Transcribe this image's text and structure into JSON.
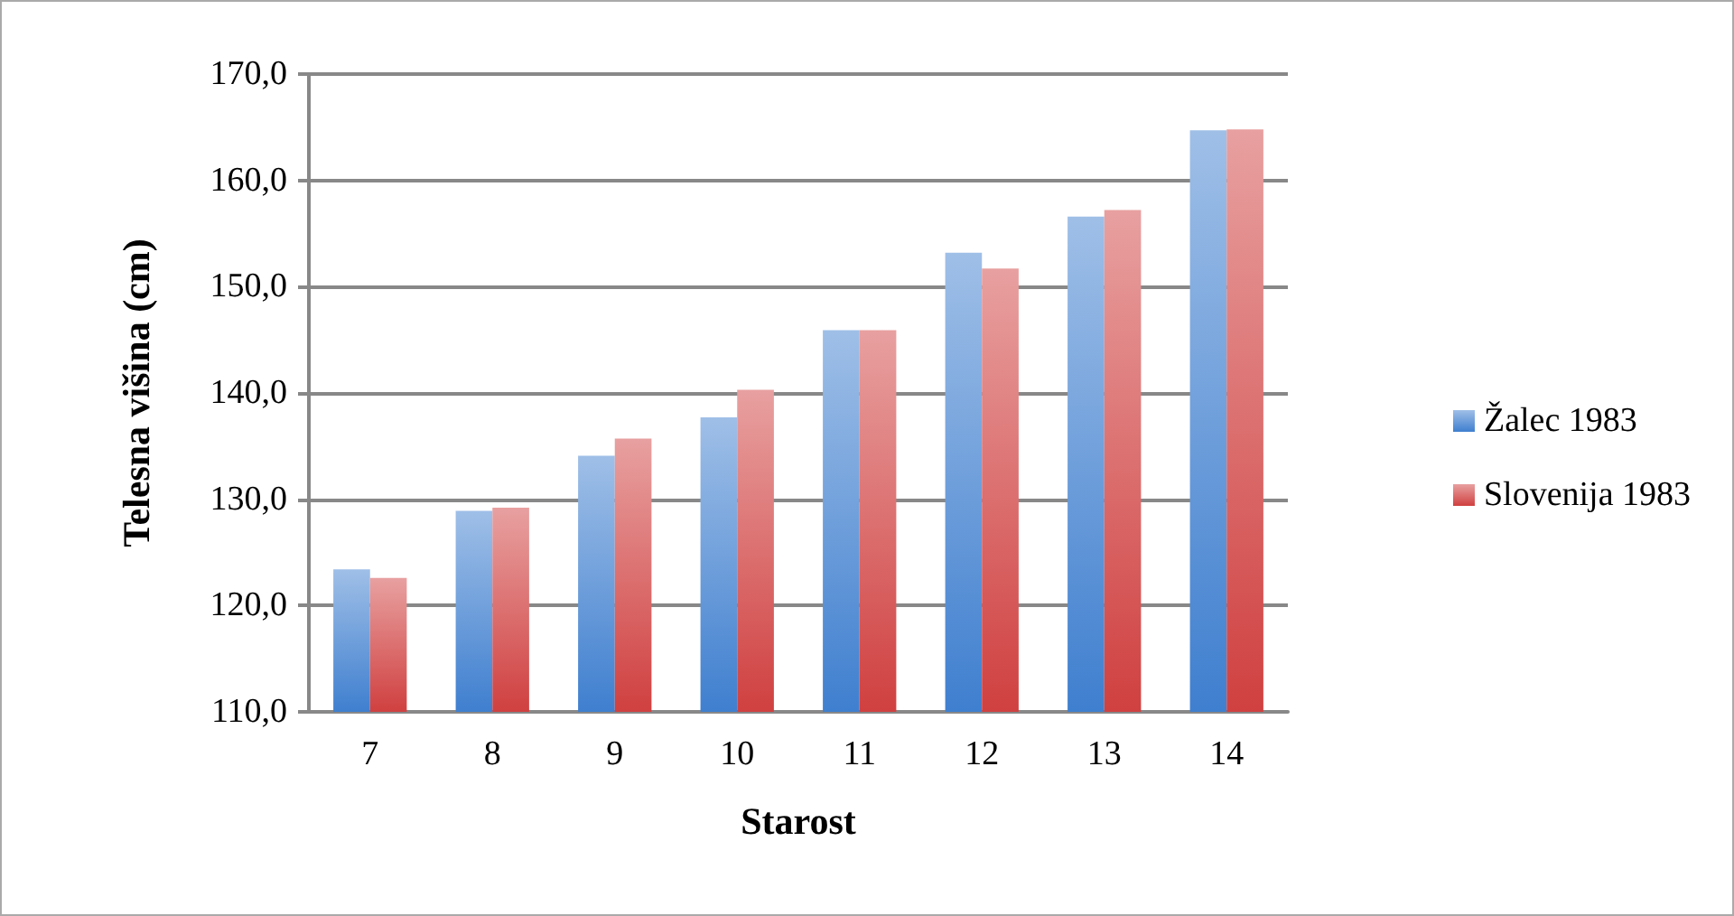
{
  "chart_data": {
    "type": "bar",
    "xlabel": "Starost",
    "ylabel": "Telesna višina (cm)",
    "categories": [
      "7",
      "8",
      "9",
      "10",
      "11",
      "12",
      "13",
      "14"
    ],
    "series": [
      {
        "name": "Žalec 1983",
        "color": "#3f7fcf",
        "values": [
          123.4,
          128.9,
          134.1,
          137.7,
          145.9,
          153.2,
          156.6,
          164.7
        ]
      },
      {
        "name": "Slovenija 1983",
        "color": "#d04040",
        "values": [
          122.6,
          129.2,
          135.7,
          140.3,
          145.9,
          151.7,
          157.2,
          164.8
        ]
      }
    ],
    "ylim": [
      110,
      170
    ],
    "yticks": [
      {
        "value": 110,
        "label": "110,0"
      },
      {
        "value": 120,
        "label": "120,0"
      },
      {
        "value": 130,
        "label": "130,0"
      },
      {
        "value": 140,
        "label": "140,0"
      },
      {
        "value": 150,
        "label": "150,0"
      },
      {
        "value": 160,
        "label": "160,0"
      },
      {
        "value": 170,
        "label": "170,0"
      }
    ],
    "grid": "y",
    "legend": "right"
  }
}
